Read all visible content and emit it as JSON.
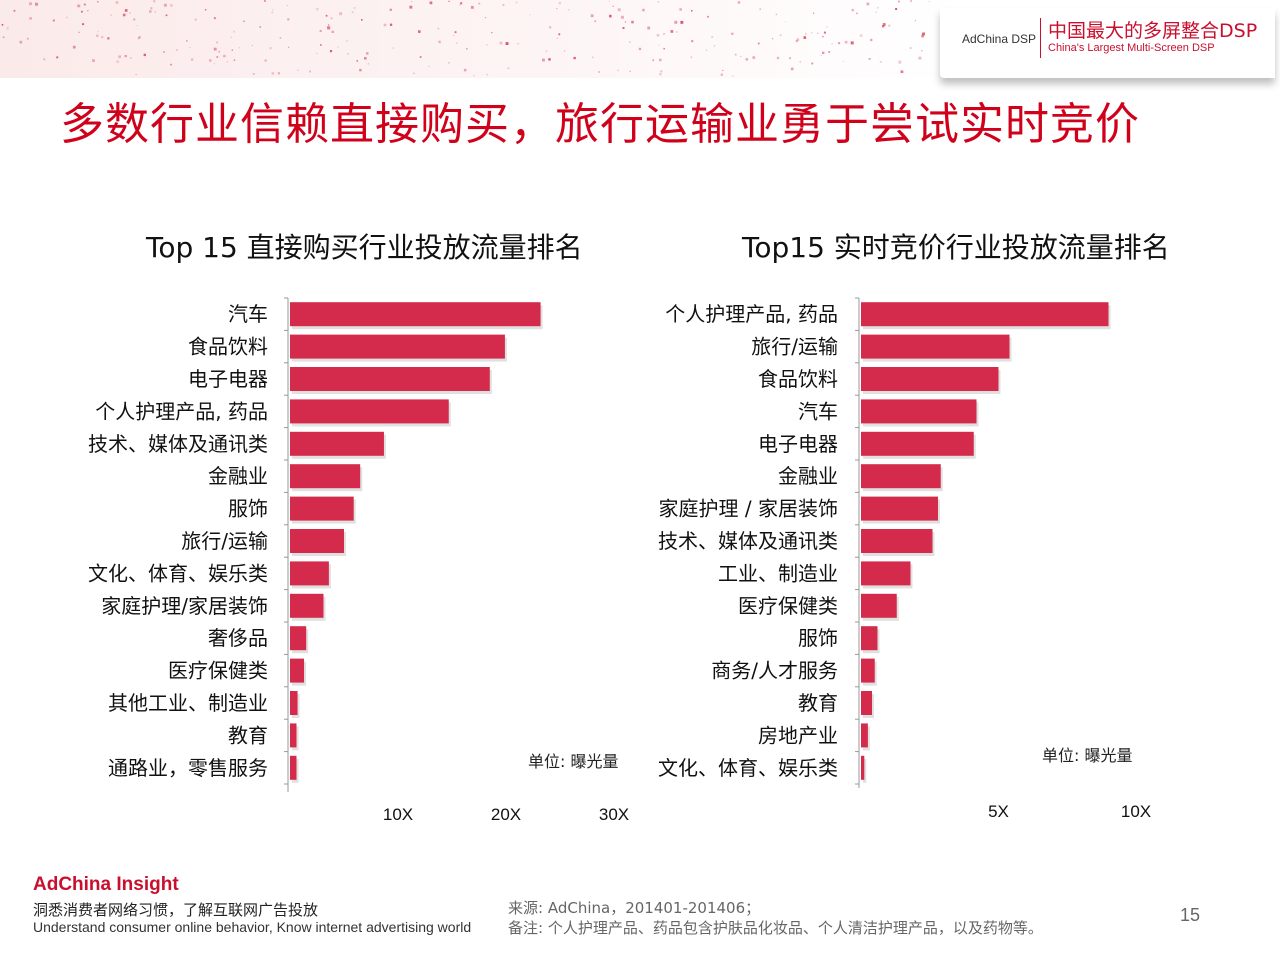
{
  "header": {
    "brand_small": "AdChina DSP",
    "brand_title": "中国最大的多屏整合DSP",
    "brand_subtitle": "China's Largest Multi-Screen DSP"
  },
  "title": "多数行业信赖直接购买，旅行运输业勇于尝试实时竞价",
  "chart_data": [
    {
      "type": "bar",
      "orientation": "horizontal",
      "title": "Top 15 直接购买行业投放流量排名",
      "categories": [
        "汽车",
        "食品饮料",
        "电子电器",
        "个人护理产品, 药品",
        "技术、媒体及通讯类",
        "金融业",
        "服饰",
        "旅行/运输",
        "文化、体育、娱乐类",
        "家庭护理/家居装饰",
        "奢侈品",
        "医疗保健类",
        "其他工业、制造业",
        "教育",
        "通路业，零售服务"
      ],
      "values": [
        23.2,
        19.9,
        18.5,
        14.7,
        8.7,
        6.5,
        5.9,
        5.0,
        3.6,
        3.1,
        1.5,
        1.3,
        0.7,
        0.6,
        0.6
      ],
      "xticks": [
        "10X",
        "20X",
        "30X"
      ],
      "xtick_values": [
        10,
        20,
        30
      ],
      "xlim": [
        0,
        30
      ],
      "unit": "单位: 曝光量",
      "color": "#d42b4c"
    },
    {
      "type": "bar",
      "orientation": "horizontal",
      "title": "Top15 实时竞价行业投放流量排名",
      "categories": [
        "个人护理产品, 药品",
        "旅行/运输",
        "食品饮料",
        "汽车",
        "电子电器",
        "金融业",
        "家庭护理 / 家居装饰",
        "技术、媒体及通讯类",
        "工业、制造业",
        "医疗保健类",
        "服饰",
        "商务/人才服务",
        "教育",
        "房地产业",
        "文化、体育、娱乐类"
      ],
      "values": [
        9.0,
        5.4,
        5.0,
        4.2,
        4.1,
        2.9,
        2.8,
        2.6,
        1.8,
        1.3,
        0.6,
        0.5,
        0.4,
        0.25,
        0.12
      ],
      "xticks": [
        "5X",
        "10X"
      ],
      "xtick_values": [
        5,
        10
      ],
      "xlim": [
        0,
        10
      ],
      "unit": "单位: 曝光量",
      "color": "#d42b4c"
    }
  ],
  "footer": {
    "logo": "AdChina Insight",
    "slogan_cn": "洞悉消费者网络习惯，了解互联网广告投放",
    "slogan_en": "Understand consumer online behavior, Know internet advertising world",
    "source": "来源: AdChina，201401-201406；",
    "note": "备注: 个人护理产品、药品包含护肤品化妆品、个人清洁护理产品，以及药物等。",
    "page": "15"
  }
}
